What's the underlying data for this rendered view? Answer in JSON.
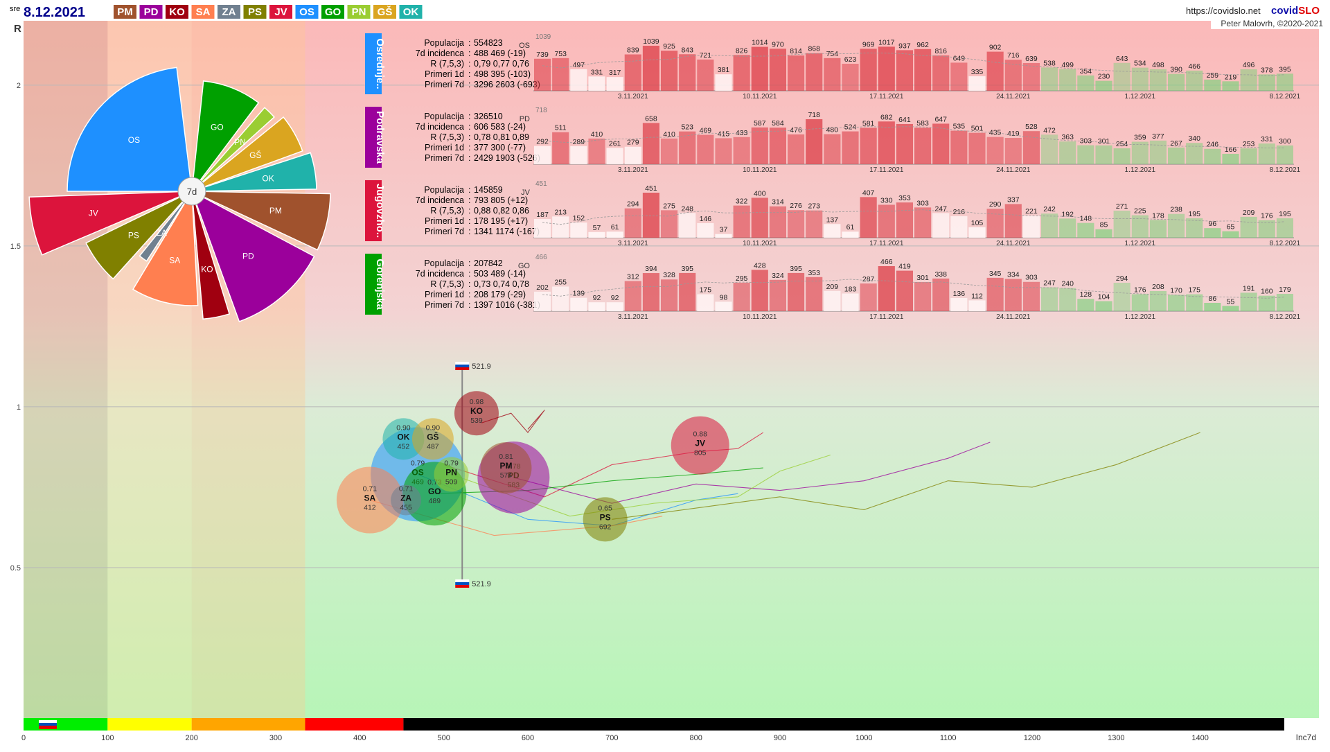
{
  "header": {
    "day": "sre",
    "date": "8.12.2021",
    "url": "https://covidslo.net",
    "brand_a": "covid",
    "brand_b": "SLO",
    "credit": "Peter Malovrh, ©2020-2021",
    "regions": [
      {
        "code": "PM",
        "color": "#a0522d"
      },
      {
        "code": "PD",
        "color": "#9b009b"
      },
      {
        "code": "KO",
        "color": "#a00010"
      },
      {
        "code": "SA",
        "color": "#ff7f50"
      },
      {
        "code": "ZA",
        "color": "#708090"
      },
      {
        "code": "PS",
        "color": "#808000"
      },
      {
        "code": "JV",
        "color": "#dc143c"
      },
      {
        "code": "OS",
        "color": "#1e90ff"
      },
      {
        "code": "GO",
        "color": "#00a000"
      },
      {
        "code": "PN",
        "color": "#9acd32"
      },
      {
        "code": "GŠ",
        "color": "#daa520"
      },
      {
        "code": "OK",
        "color": "#20b2aa"
      }
    ]
  },
  "pie": {
    "center_label": "7d",
    "slices": [
      {
        "code": "OS",
        "color": "#1e90ff",
        "start": 270,
        "end": 353,
        "r": 180
      },
      {
        "code": "GO",
        "color": "#00a000",
        "start": 6,
        "end": 37,
        "r": 160
      },
      {
        "code": "PN",
        "color": "#9acd32",
        "start": 41,
        "end": 48,
        "r": 160
      },
      {
        "code": "GŠ",
        "color": "#daa520",
        "start": 51,
        "end": 70,
        "r": 170
      },
      {
        "code": "OK",
        "color": "#20b2aa",
        "start": 72,
        "end": 89,
        "r": 180
      },
      {
        "code": "PM",
        "color": "#a0522d",
        "start": 91,
        "end": 115,
        "r": 200
      },
      {
        "code": "PD",
        "color": "#9b009b",
        "start": 118,
        "end": 160,
        "r": 200
      },
      {
        "code": "KO",
        "color": "#a00010",
        "start": 163,
        "end": 175,
        "r": 185
      },
      {
        "code": "SA",
        "color": "#ff7f50",
        "start": 177,
        "end": 211,
        "r": 165
      },
      {
        "code": "ZA",
        "color": "#708090",
        "start": 213,
        "end": 219,
        "r": 120
      },
      {
        "code": "PS",
        "color": "#808000",
        "start": 222,
        "end": 244,
        "r": 170
      },
      {
        "code": "JV",
        "color": "#dc143c",
        "start": 247,
        "end": 268,
        "r": 235
      }
    ]
  },
  "panels": [
    {
      "name": "Osrednje..",
      "code": "OS",
      "color": "#1e90ff",
      "stats": [
        [
          "Populacija",
          "554823"
        ],
        [
          "7d incidenca",
          "488 469 (-19)"
        ],
        [
          "R (7,5,3)",
          "0,79 0,77 0,76"
        ],
        [
          "Primeri 1d",
          "498 395 (-103)"
        ],
        [
          "Primeri 7d",
          "3296 2603 (-693)"
        ]
      ],
      "max_label": "1039",
      "values": [
        739,
        753,
        497,
        331,
        317,
        839,
        1039,
        925,
        843,
        721,
        381,
        826,
        1014,
        970,
        814,
        868,
        754,
        623,
        969,
        1017,
        937,
        962,
        816,
        649,
        335,
        902,
        716,
        639,
        538,
        499,
        354,
        230,
        643,
        534,
        498,
        390,
        466,
        259,
        219,
        496,
        378,
        395
      ],
      "dates": [
        "3.11.2021",
        "10.11.2021",
        "17.11.2021",
        "24.11.2021",
        "1.12.2021",
        "8.12.2021"
      ]
    },
    {
      "name": "Podravska",
      "code": "PD",
      "color": "#9b009b",
      "stats": [
        [
          "Populacija",
          "326510"
        ],
        [
          "7d incidenca",
          "606 583 (-24)"
        ],
        [
          "R (7,5,3)",
          "0,78 0,81 0,89"
        ],
        [
          "Primeri 1d",
          "377 300 (-77)"
        ],
        [
          "Primeri 7d",
          "2429 1903 (-526)"
        ]
      ],
      "max_label": "718",
      "values": [
        292,
        511,
        289,
        410,
        261,
        279,
        658,
        410,
        523,
        469,
        415,
        433,
        587,
        584,
        476,
        718,
        480,
        524,
        581,
        682,
        641,
        583,
        647,
        535,
        501,
        435,
        419,
        528,
        472,
        363,
        303,
        301,
        254,
        359,
        377,
        267,
        340,
        246,
        166,
        253,
        331,
        300
      ],
      "dates": [
        "3.11.2021",
        "10.11.2021",
        "17.11.2021",
        "24.11.2021",
        "1.12.2021",
        "8.12.2021"
      ]
    },
    {
      "name": "Jugovzho..",
      "code": "JV",
      "color": "#dc143c",
      "stats": [
        [
          "Populacija",
          "145859"
        ],
        [
          "7d incidenca",
          "793 805 (+12)"
        ],
        [
          "R (7,5,3)",
          "0,88 0,82 0,86"
        ],
        [
          "Primeri 1d",
          "178 195 (+17)"
        ],
        [
          "Primeri 7d",
          "1341 1174 (-167)"
        ]
      ],
      "max_label": "451",
      "values": [
        187,
        213,
        152,
        57,
        61,
        294,
        451,
        275,
        248,
        146,
        37,
        322,
        400,
        314,
        276,
        273,
        137,
        61,
        407,
        330,
        353,
        303,
        247,
        216,
        105,
        290,
        337,
        221,
        242,
        192,
        148,
        85,
        271,
        225,
        178,
        238,
        195,
        96,
        65,
        209,
        176,
        195
      ],
      "dates": [
        "3.11.2021",
        "10.11.2021",
        "17.11.2021",
        "24.11.2021",
        "1.12.2021",
        "8.12.2021"
      ]
    },
    {
      "name": "Gorenjska",
      "code": "GO",
      "color": "#00a000",
      "stats": [
        [
          "Populacija",
          "207842"
        ],
        [
          "7d incidenca",
          "503 489 (-14)"
        ],
        [
          "R (7,5,3)",
          "0,73 0,74 0,78"
        ],
        [
          "Primeri 1d",
          "208 179 (-29)"
        ],
        [
          "Primeri 7d",
          "1397 1016 (-381)"
        ]
      ],
      "max_label": "466",
      "values": [
        202,
        255,
        139,
        92,
        92,
        312,
        394,
        328,
        395,
        175,
        98,
        295,
        428,
        324,
        395,
        353,
        209,
        183,
        287,
        466,
        419,
        301,
        338,
        136,
        112,
        345,
        334,
        303,
        247,
        240,
        128,
        104,
        294,
        176,
        208,
        170,
        175,
        86,
        55,
        191,
        160,
        179
      ],
      "dates": [
        "3.11.2021",
        "10.11.2021",
        "17.11.2021",
        "24.11.2021",
        "1.12.2021",
        "8.12.2021"
      ]
    }
  ],
  "chart_data": {
    "type": "scatter",
    "title": "",
    "xlabel": "Inc7d",
    "ylabel": "R",
    "xlim": [
      0,
      1500
    ],
    "ylim": [
      0,
      2.2
    ],
    "x_ticks": [
      0,
      100,
      200,
      300,
      400,
      500,
      600,
      700,
      800,
      900,
      1000,
      1100,
      1200,
      1300,
      1400
    ],
    "y_ticks": [
      0.5,
      1,
      1.5,
      2
    ],
    "slovenia_marker": {
      "value": 521.9,
      "label": "521.9"
    },
    "points": [
      {
        "code": "KO",
        "r": 0.98,
        "inc": 539,
        "color": "#a00010",
        "size": 32
      },
      {
        "code": "OK",
        "r": 0.9,
        "inc": 452,
        "color": "#20b2aa",
        "size": 30
      },
      {
        "code": "GŠ",
        "r": 0.9,
        "inc": 487,
        "color": "#daa520",
        "size": 30
      },
      {
        "code": "OS",
        "r": 0.79,
        "inc": 469,
        "color": "#1e90ff",
        "size": 68
      },
      {
        "code": "PN",
        "r": 0.79,
        "inc": 509,
        "color": "#9acd32",
        "size": 25
      },
      {
        "code": "GO",
        "r": 0.73,
        "inc": 489,
        "color": "#00a000",
        "size": 46
      },
      {
        "code": "ZA",
        "r": 0.71,
        "inc": 455,
        "color": "#708090",
        "size": 22
      },
      {
        "code": "SA",
        "r": 0.71,
        "inc": 412,
        "color": "#ff7f50",
        "size": 48
      },
      {
        "code": "PM",
        "r": 0.81,
        "inc": 574,
        "color": "#a0522d",
        "size": 37
      },
      {
        "code": "PD",
        "r": 0.78,
        "inc": 583,
        "color": "#9b009b",
        "size": 52
      },
      {
        "code": "JV",
        "r": 0.88,
        "inc": 805,
        "color": "#dc143c",
        "size": 42
      },
      {
        "code": "PS",
        "r": 0.65,
        "inc": 692,
        "color": "#808000",
        "size": 32
      }
    ],
    "trails": [
      {
        "code": "JV",
        "color": "#dc143c",
        "points": [
          [
            500,
            0.82
          ],
          [
            620,
            0.72
          ],
          [
            700,
            0.82
          ],
          [
            800,
            0.86
          ],
          [
            850,
            0.87
          ],
          [
            880,
            0.92
          ]
        ]
      },
      {
        "code": "KO",
        "color": "#a00010",
        "points": [
          [
            545,
            0.95
          ],
          [
            580,
            0.98
          ],
          [
            600,
            0.92
          ],
          [
            620,
            0.99
          ],
          [
            610,
            0.96
          ],
          [
            600,
            0.93
          ]
        ]
      },
      {
        "code": "PS",
        "color": "#808000",
        "points": [
          [
            700,
            0.65
          ],
          [
            900,
            0.72
          ],
          [
            1000,
            0.68
          ],
          [
            1100,
            0.77
          ],
          [
            1200,
            0.75
          ],
          [
            1300,
            0.82
          ],
          [
            1400,
            0.92
          ]
        ]
      },
      {
        "code": "PD",
        "color": "#9b009b",
        "points": [
          [
            583,
            0.78
          ],
          [
            700,
            0.7
          ],
          [
            800,
            0.76
          ],
          [
            900,
            0.74
          ],
          [
            1000,
            0.77
          ],
          [
            1100,
            0.84
          ],
          [
            1150,
            0.89
          ]
        ]
      },
      {
        "code": "OS",
        "color": "#1e90ff",
        "points": [
          [
            469,
            0.79
          ],
          [
            600,
            0.65
          ],
          [
            700,
            0.63
          ],
          [
            800,
            0.71
          ],
          [
            850,
            0.73
          ]
        ]
      },
      {
        "code": "GO",
        "color": "#00a000",
        "points": [
          [
            489,
            0.73
          ],
          [
            600,
            0.74
          ],
          [
            700,
            0.77
          ],
          [
            800,
            0.79
          ],
          [
            880,
            0.81
          ]
        ]
      },
      {
        "code": "PN",
        "color": "#9acd32",
        "points": [
          [
            509,
            0.79
          ],
          [
            650,
            0.66
          ],
          [
            750,
            0.7
          ],
          [
            850,
            0.72
          ],
          [
            900,
            0.8
          ],
          [
            960,
            0.85
          ]
        ]
      },
      {
        "code": "SA",
        "color": "#ff7f50",
        "points": [
          [
            412,
            0.71
          ],
          [
            560,
            0.6
          ],
          [
            700,
            0.63
          ],
          [
            760,
            0.66
          ]
        ]
      }
    ],
    "color_bands": [
      {
        "from": 0,
        "to": 100,
        "color": "#00ee00"
      },
      {
        "from": 100,
        "to": 200,
        "color": "#ffff00"
      },
      {
        "from": 200,
        "to": 335,
        "color": "#ffa500"
      },
      {
        "from": 335,
        "to": 452,
        "color": "#ff0000"
      },
      {
        "from": 452,
        "to": 1500,
        "color": "#000000"
      }
    ]
  }
}
